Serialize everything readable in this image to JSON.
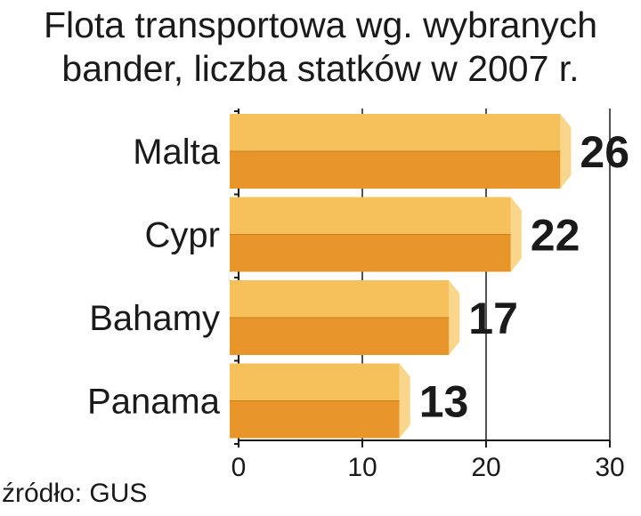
{
  "chart_data": {
    "type": "bar",
    "orientation": "horizontal",
    "title": "Flota transportowa wg. wybranych bander, liczba statków w 2007 r.",
    "title_lines": [
      "Flota transportowa wg. wybranych",
      "bander, liczba statków w 2007 r."
    ],
    "categories": [
      "Malta",
      "Cypr",
      "Bahamy",
      "Panama"
    ],
    "values": [
      26,
      22,
      17,
      13
    ],
    "xlim": [
      0,
      30
    ],
    "xticks": [
      0,
      10,
      20,
      30
    ],
    "xlabel": "",
    "ylabel": "",
    "grid": "vertical",
    "source": "źródło: GUS"
  },
  "colors": {
    "bar_top": "#f6c15a",
    "bar_bottom": "#e8962a",
    "bar_cap": "#f9d68c",
    "text": "#1a1a1a",
    "axis": "#1a1a1a",
    "gridline": "#1a1a1a"
  }
}
